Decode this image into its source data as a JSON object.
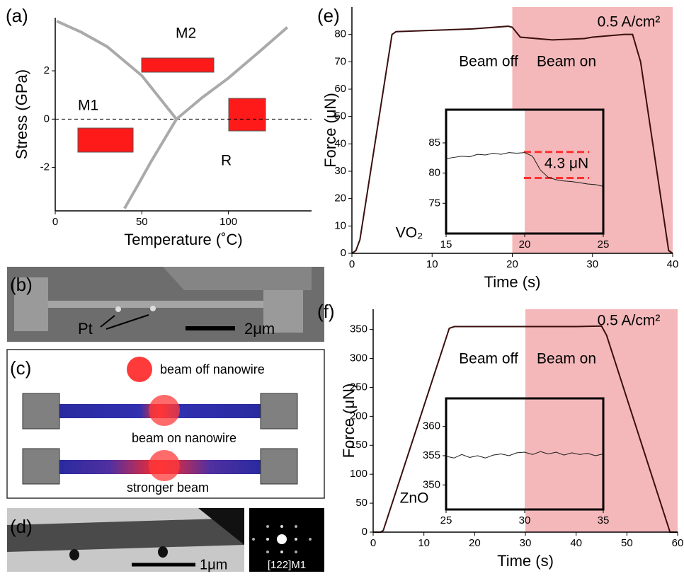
{
  "panel_labels": [
    "(a)",
    "(b)",
    "(c)",
    "(d)",
    "(e)",
    "(f)"
  ],
  "chart_data": [
    {
      "type": "line",
      "x_label": "Temperature (˚C)",
      "y_label": "Stress (GPa)",
      "xlim": [
        0,
        148
      ],
      "ylim": [
        -3.8,
        4.2
      ],
      "xticks": [
        0,
        50,
        100
      ],
      "yticks": [
        -2,
        0,
        2
      ],
      "reference_lines": [
        0
      ],
      "series": [
        {
          "color": "#aaaaaa",
          "x": [
            0.8,
            15,
            30,
            50,
            70
          ],
          "values": [
            4.06,
            3.6,
            3.0,
            1.8,
            0
          ]
        },
        {
          "color": "#aaaaaa",
          "x": [
            40,
            48,
            55,
            70,
            85,
            100,
            118,
            134
          ],
          "values": [
            -3.7,
            -2.7,
            -1.8,
            0,
            0.9,
            1.7,
            2.8,
            3.8
          ]
        }
      ],
      "annotations": [
        "M1",
        "M2",
        "R"
      ]
    },
    {
      "type": "line",
      "x_label": "Time (s)",
      "y_label": "Force (μN)",
      "xlim": [
        0,
        40
      ],
      "ylim": [
        0,
        90
      ],
      "xticks": [
        0,
        10,
        20,
        30,
        40
      ],
      "yticks": [
        0,
        10,
        20,
        30,
        40,
        50,
        60,
        70,
        80
      ],
      "highlight_x": [
        20,
        40
      ],
      "highlight_color": "#f4b8ba",
      "series": [
        {
          "color": "#3a0f0f",
          "x": [
            0,
            0.5,
            1,
            5,
            5.5,
            10,
            15,
            19.5,
            20,
            21,
            25,
            29,
            30,
            34,
            35,
            36,
            39.5,
            40
          ],
          "values": [
            0,
            1,
            5,
            80,
            81,
            81.5,
            82,
            83,
            82.6,
            79,
            78,
            78.5,
            79,
            80,
            80,
            70,
            1,
            0
          ]
        }
      ],
      "annotations": [
        "Beam off",
        "Beam on",
        "0.5 A/cm²"
      ]
    },
    {
      "type": "line",
      "xlim": [
        15,
        25
      ],
      "ylim": [
        70,
        90.5
      ],
      "xticks": [
        15,
        20,
        25
      ],
      "yticks": [
        75,
        80,
        85
      ],
      "highlight_x": [
        20,
        25
      ],
      "highlight_color": "#f4b8ba",
      "reference_lines": [
        83.5,
        79.2
      ],
      "series": [
        {
          "color": "#1a1a1a",
          "x": [
            15,
            15.5,
            16,
            16.5,
            17,
            17.5,
            18,
            18.5,
            19,
            19.5,
            20,
            20.5,
            21,
            21.5,
            22,
            22.5,
            23,
            23.5,
            24,
            24.5,
            25
          ],
          "values": [
            82.4,
            82.6,
            82.8,
            82.7,
            83.1,
            83.0,
            83.3,
            83.1,
            83.4,
            83.3,
            83.4,
            82.8,
            80.5,
            79.3,
            78.9,
            78.7,
            78.6,
            78.4,
            78.2,
            78.1,
            77.8
          ]
        }
      ],
      "annotations": [
        "4.3 μN",
        "VO₂"
      ]
    },
    {
      "type": "line",
      "x_label": "Time (s)",
      "y_label": "Force (μN)",
      "xlim": [
        0,
        60
      ],
      "ylim": [
        0,
        385
      ],
      "xticks": [
        0,
        10,
        20,
        30,
        40,
        50,
        60
      ],
      "yticks": [
        0,
        50,
        100,
        150,
        200,
        250,
        300,
        350
      ],
      "highlight_x": [
        30,
        60
      ],
      "highlight_color": "#f4b8ba",
      "series": [
        {
          "color": "#3a0f0f",
          "x": [
            0,
            1.5,
            2,
            15,
            16,
            25,
            30,
            40,
            45,
            46,
            58.5,
            60
          ],
          "values": [
            0,
            0,
            3,
            352,
            355,
            355,
            355,
            355,
            356,
            340,
            0,
            0
          ]
        }
      ],
      "annotations": [
        "Beam off",
        "Beam on",
        "0.5 A/cm²"
      ]
    },
    {
      "type": "line",
      "xlim": [
        25,
        35
      ],
      "ylim": [
        345.8,
        364.8
      ],
      "xticks": [
        25,
        30,
        35
      ],
      "yticks": [
        350,
        355,
        360
      ],
      "highlight_x": [
        30,
        35
      ],
      "highlight_color": "#f4b8ba",
      "series": [
        {
          "color": "#1a1a1a",
          "x": [
            25,
            25.5,
            26,
            26.5,
            27,
            27.5,
            28,
            28.5,
            29,
            29.5,
            30,
            30.5,
            31,
            31.5,
            32,
            32.5,
            33,
            33.5,
            34,
            34.5,
            35
          ],
          "values": [
            354.9,
            354.6,
            355.2,
            354.7,
            355.0,
            354.6,
            355.1,
            355.3,
            355.0,
            355.5,
            355.6,
            355.2,
            355.7,
            355.3,
            355.6,
            355.1,
            355.5,
            355.2,
            355.4,
            355.0,
            355.3
          ]
        }
      ],
      "annotations": [
        "ZnO"
      ]
    }
  ],
  "panel_b": {
    "pt": "Pt",
    "scale": "2μm"
  },
  "panel_c": {
    "beam_off": "beam off nanowire",
    "beam_on": "beam on nanowire",
    "stronger": "stronger beam"
  },
  "panel_d": {
    "scale": "1μm",
    "zone": "[122]M1"
  }
}
